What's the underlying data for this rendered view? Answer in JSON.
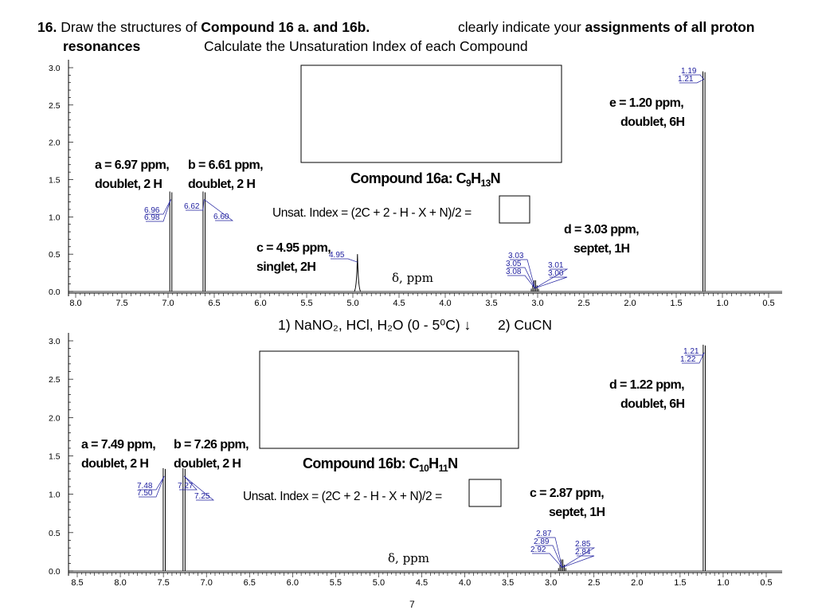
{
  "header": {
    "number": "16.",
    "text1": "Draw the structures of",
    "text2": "Compound 16 a. and 16b.",
    "text3": "clearly indicate your",
    "text4": "assignments of all proton",
    "text5": "resonances",
    "text6": "Calculate the Unsaturation Index of each Compound"
  },
  "reaction": {
    "step1": "1) NaNO₂, HCl, H₂O (0 - 5⁰C) ↓",
    "step2": "2) CuCN"
  },
  "page_number": "7",
  "chart_data": [
    {
      "type": "line",
      "subtype": "1H NMR spectrum",
      "xlabel": "δ, ppm",
      "x_reversed": true,
      "xlim": [
        8.0,
        0.5
      ],
      "ylim": [
        0,
        3.0
      ],
      "x_ticks": [
        "8.0",
        "7.5",
        "7.0",
        "6.5",
        "6.0",
        "5.5",
        "5.0",
        "4.5",
        "4.0",
        "3.5",
        "3.0",
        "2.5",
        "2.0",
        "1.5",
        "1.0",
        "0.5"
      ],
      "y_ticks": [
        "0.0",
        "0.5",
        "1.0",
        "1.5",
        "2.0",
        "2.5",
        "3.0"
      ],
      "compound_label": "Compound 16a: C",
      "formula": {
        "C": "9",
        "H": "13",
        "rest": "N"
      },
      "unsat_label": "Unsat. Index = (2C + 2 - H - X + N)/2 =",
      "peaks": [
        {
          "ppm": 6.97,
          "height": 1.34,
          "labels": [
            "6.96",
            "6.98"
          ]
        },
        {
          "ppm": 6.61,
          "height": 1.34,
          "labels": [
            "6.62",
            "6.60"
          ]
        },
        {
          "ppm": 4.95,
          "height": 0.5,
          "labels": [
            "4.95"
          ]
        },
        {
          "ppm": 3.03,
          "height": 0.15,
          "labels": [
            "3.03",
            "3.05",
            "3.08",
            "3.01",
            "3.00"
          ]
        },
        {
          "ppm": 1.2,
          "height": 2.95,
          "labels": [
            "1.19",
            "1.21"
          ]
        }
      ],
      "annotations": [
        {
          "id": "a",
          "line1": "a = 6.97 ppm,",
          "line2": "doublet, 2 H"
        },
        {
          "id": "b",
          "line1": "b = 6.61 ppm,",
          "line2": "doublet, 2 H"
        },
        {
          "id": "c",
          "line1": "c = 4.95 ppm,",
          "line2": "singlet, 2H"
        },
        {
          "id": "d",
          "line1": "d = 3.03 ppm,",
          "line2": "septet, 1H"
        },
        {
          "id": "e",
          "line1": "e = 1.20 ppm,",
          "line2": "doublet, 6H"
        }
      ]
    },
    {
      "type": "line",
      "subtype": "1H NMR spectrum",
      "xlabel": "δ, ppm",
      "x_reversed": true,
      "xlim": [
        8.5,
        0.5
      ],
      "ylim": [
        0,
        3.0
      ],
      "x_ticks": [
        "8.5",
        "8.0",
        "7.5",
        "7.0",
        "6.5",
        "6.0",
        "5.5",
        "5.0",
        "4.5",
        "4.0",
        "3.5",
        "3.0",
        "2.5",
        "2.0",
        "1.5",
        "1.0",
        "0.5"
      ],
      "y_ticks": [
        "0.0",
        "0.5",
        "1.0",
        "1.5",
        "2.0",
        "2.5",
        "3.0"
      ],
      "compound_label": "Compound 16b: C",
      "formula": {
        "C": "10",
        "H": "11",
        "rest": "N"
      },
      "unsat_label": "Unsat. Index = (2C + 2 - H - X + N)/2 =",
      "peaks": [
        {
          "ppm": 7.49,
          "height": 1.34,
          "labels": [
            "7.48",
            "7.50"
          ]
        },
        {
          "ppm": 7.26,
          "height": 1.34,
          "labels": [
            "7.27",
            "7.25"
          ]
        },
        {
          "ppm": 2.87,
          "height": 0.15,
          "labels": [
            "2.87",
            "2.89",
            "2.92",
            "2.85",
            "2.84"
          ]
        },
        {
          "ppm": 1.22,
          "height": 2.95,
          "labels": [
            "1.21",
            "1.22"
          ]
        }
      ],
      "annotations": [
        {
          "id": "a",
          "line1": "a = 7.49 ppm,",
          "line2": "doublet, 2 H"
        },
        {
          "id": "b",
          "line1": "b = 7.26 ppm,",
          "line2": "doublet, 2 H"
        },
        {
          "id": "c",
          "line1": "c = 2.87 ppm,",
          "line2": "septet, 1H"
        },
        {
          "id": "d",
          "line1": "d = 1.22 ppm,",
          "line2": "doublet, 6H"
        }
      ]
    }
  ]
}
